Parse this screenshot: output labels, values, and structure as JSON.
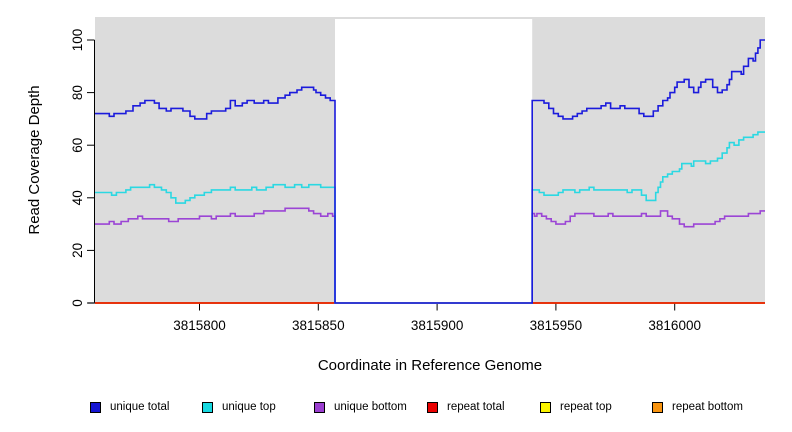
{
  "chart_data": {
    "type": "line",
    "subtype": "step-coverage-plot",
    "xlabel": "Coordinate in Reference Genome",
    "ylabel": "Read Coverage Depth",
    "xlim": [
      3815756,
      3816038
    ],
    "ylim": [
      0,
      108
    ],
    "grid": false,
    "panel_bg": "#DCDCDC",
    "gap_bg": "#FFFFFF",
    "gap_region": {
      "start": 3815857,
      "end": 3815940,
      "note": "white no-data region; all series at depth 0"
    },
    "xticks": {
      "values": [
        3815800,
        3815850,
        3815900,
        3815950,
        3816000
      ],
      "labels": [
        "3815800",
        "3815850",
        "3815900",
        "3815950",
        "3816000"
      ]
    },
    "yticks": {
      "values": [
        0,
        20,
        40,
        60,
        80,
        100
      ],
      "labels": [
        "0",
        "20",
        "40",
        "60",
        "80",
        "100"
      ]
    },
    "series": [
      {
        "name": "unique total",
        "color": "#1B1BDC",
        "points": [
          [
            3815756,
            72
          ],
          [
            3815762,
            71
          ],
          [
            3815764,
            72
          ],
          [
            3815769,
            73
          ],
          [
            3815772,
            75
          ],
          [
            3815775,
            76
          ],
          [
            3815777,
            77
          ],
          [
            3815781,
            76
          ],
          [
            3815783,
            74
          ],
          [
            3815786,
            73
          ],
          [
            3815788,
            74
          ],
          [
            3815793,
            73
          ],
          [
            3815796,
            71
          ],
          [
            3815798,
            70
          ],
          [
            3815803,
            72
          ],
          [
            3815805,
            73
          ],
          [
            3815811,
            74
          ],
          [
            3815813,
            77
          ],
          [
            3815815,
            75
          ],
          [
            3815818,
            76
          ],
          [
            3815820,
            77
          ],
          [
            3815823,
            76
          ],
          [
            3815827,
            77
          ],
          [
            3815829,
            76
          ],
          [
            3815833,
            78
          ],
          [
            3815836,
            79
          ],
          [
            3815838,
            80
          ],
          [
            3815841,
            81
          ],
          [
            3815843,
            82
          ],
          [
            3815848,
            81
          ],
          [
            3815849,
            80
          ],
          [
            3815851,
            79
          ],
          [
            3815853,
            78
          ],
          [
            3815855,
            77
          ],
          [
            3815857,
            0
          ],
          [
            3815940,
            77
          ],
          [
            3815945,
            76
          ],
          [
            3815947,
            74
          ],
          [
            3815949,
            72
          ],
          [
            3815951,
            71
          ],
          [
            3815953,
            70
          ],
          [
            3815957,
            71
          ],
          [
            3815959,
            72
          ],
          [
            3815961,
            73
          ],
          [
            3815963,
            74
          ],
          [
            3815969,
            75
          ],
          [
            3815971,
            76
          ],
          [
            3815973,
            74
          ],
          [
            3815977,
            75
          ],
          [
            3815979,
            74
          ],
          [
            3815985,
            72
          ],
          [
            3815987,
            71
          ],
          [
            3815991,
            73
          ],
          [
            3815993,
            75
          ],
          [
            3815995,
            77
          ],
          [
            3815997,
            78
          ],
          [
            3815998,
            80
          ],
          [
            3816000,
            82
          ],
          [
            3816001,
            84
          ],
          [
            3816004,
            85
          ],
          [
            3816006,
            82
          ],
          [
            3816008,
            80
          ],
          [
            3816010,
            82
          ],
          [
            3816011,
            84
          ],
          [
            3816013,
            85
          ],
          [
            3816016,
            82
          ],
          [
            3816018,
            80
          ],
          [
            3816020,
            81
          ],
          [
            3816022,
            83
          ],
          [
            3816023,
            85
          ],
          [
            3816024,
            88
          ],
          [
            3816028,
            87
          ],
          [
            3816029,
            90
          ],
          [
            3816031,
            93
          ],
          [
            3816033,
            92
          ],
          [
            3816034,
            95
          ],
          [
            3816035,
            97
          ],
          [
            3816036,
            100
          ]
        ]
      },
      {
        "name": "unique top",
        "color": "#2BD8E2",
        "points": [
          [
            3815756,
            42
          ],
          [
            3815763,
            41
          ],
          [
            3815765,
            42
          ],
          [
            3815769,
            43
          ],
          [
            3815771,
            44
          ],
          [
            3815779,
            45
          ],
          [
            3815781,
            44
          ],
          [
            3815784,
            43
          ],
          [
            3815786,
            42
          ],
          [
            3815788,
            40
          ],
          [
            3815790,
            38
          ],
          [
            3815794,
            39
          ],
          [
            3815796,
            40
          ],
          [
            3815798,
            41
          ],
          [
            3815802,
            42
          ],
          [
            3815805,
            43
          ],
          [
            3815813,
            44
          ],
          [
            3815815,
            43
          ],
          [
            3815822,
            44
          ],
          [
            3815824,
            43
          ],
          [
            3815828,
            44
          ],
          [
            3815831,
            45
          ],
          [
            3815836,
            44
          ],
          [
            3815840,
            45
          ],
          [
            3815843,
            44
          ],
          [
            3815846,
            45
          ],
          [
            3815851,
            44
          ],
          [
            3815857,
            0
          ],
          [
            3815940,
            43
          ],
          [
            3815943,
            42
          ],
          [
            3815945,
            41
          ],
          [
            3815951,
            42
          ],
          [
            3815953,
            43
          ],
          [
            3815958,
            42
          ],
          [
            3815960,
            43
          ],
          [
            3815964,
            44
          ],
          [
            3815966,
            43
          ],
          [
            3815980,
            42
          ],
          [
            3815982,
            43
          ],
          [
            3815986,
            41
          ],
          [
            3815988,
            39
          ],
          [
            3815992,
            42
          ],
          [
            3815993,
            44
          ],
          [
            3815994,
            46
          ],
          [
            3815995,
            48
          ],
          [
            3815997,
            49
          ],
          [
            3815999,
            50
          ],
          [
            3816002,
            51
          ],
          [
            3816003,
            53
          ],
          [
            3816007,
            52
          ],
          [
            3816008,
            54
          ],
          [
            3816013,
            53
          ],
          [
            3816015,
            54
          ],
          [
            3816018,
            55
          ],
          [
            3816020,
            57
          ],
          [
            3816022,
            59
          ],
          [
            3816023,
            61
          ],
          [
            3816025,
            60
          ],
          [
            3816027,
            62
          ],
          [
            3816029,
            63
          ],
          [
            3816033,
            64
          ],
          [
            3816035,
            65
          ]
        ]
      },
      {
        "name": "unique bottom",
        "color": "#9B45D5",
        "points": [
          [
            3815756,
            30
          ],
          [
            3815762,
            31
          ],
          [
            3815764,
            30
          ],
          [
            3815767,
            31
          ],
          [
            3815770,
            32
          ],
          [
            3815774,
            33
          ],
          [
            3815776,
            32
          ],
          [
            3815785,
            32
          ],
          [
            3815787,
            31
          ],
          [
            3815791,
            32
          ],
          [
            3815800,
            33
          ],
          [
            3815805,
            32
          ],
          [
            3815807,
            33
          ],
          [
            3815813,
            34
          ],
          [
            3815815,
            33
          ],
          [
            3815823,
            34
          ],
          [
            3815827,
            35
          ],
          [
            3815836,
            36
          ],
          [
            3815843,
            36
          ],
          [
            3815846,
            35
          ],
          [
            3815848,
            34
          ],
          [
            3815851,
            33
          ],
          [
            3815854,
            34
          ],
          [
            3815856,
            33
          ],
          [
            3815857,
            0
          ],
          [
            3815940,
            34
          ],
          [
            3815941,
            33
          ],
          [
            3815942,
            34
          ],
          [
            3815944,
            33
          ],
          [
            3815946,
            32
          ],
          [
            3815948,
            31
          ],
          [
            3815950,
            30
          ],
          [
            3815954,
            31
          ],
          [
            3815956,
            33
          ],
          [
            3815958,
            34
          ],
          [
            3815964,
            34
          ],
          [
            3815966,
            33
          ],
          [
            3815972,
            34
          ],
          [
            3815974,
            33
          ],
          [
            3815986,
            34
          ],
          [
            3815988,
            33
          ],
          [
            3815994,
            35
          ],
          [
            3815997,
            33
          ],
          [
            3815999,
            32
          ],
          [
            3816002,
            30
          ],
          [
            3816004,
            29
          ],
          [
            3816008,
            30
          ],
          [
            3816017,
            31
          ],
          [
            3816019,
            32
          ],
          [
            3816021,
            33
          ],
          [
            3816031,
            34
          ],
          [
            3816036,
            35
          ]
        ]
      },
      {
        "name": "repeat total",
        "color": "#E60000",
        "points": [
          [
            3815756,
            0
          ]
        ]
      },
      {
        "name": "repeat top",
        "color": "#FBF200",
        "points": [
          [
            3815756,
            0
          ]
        ]
      },
      {
        "name": "repeat bottom",
        "color": "#FB9210",
        "points": [
          [
            3815756,
            0
          ]
        ]
      }
    ],
    "legend": {
      "position": "bottom",
      "entries": [
        {
          "label": "unique total",
          "color": "#1414D2"
        },
        {
          "label": "unique top",
          "color": "#17D8E0"
        },
        {
          "label": "unique bottom",
          "color": "#9B3FD0"
        },
        {
          "label": "repeat total",
          "color": "#EA0000"
        },
        {
          "label": "repeat top",
          "color": "#FCF500"
        },
        {
          "label": "repeat bottom",
          "color": "#F89410"
        }
      ]
    }
  }
}
